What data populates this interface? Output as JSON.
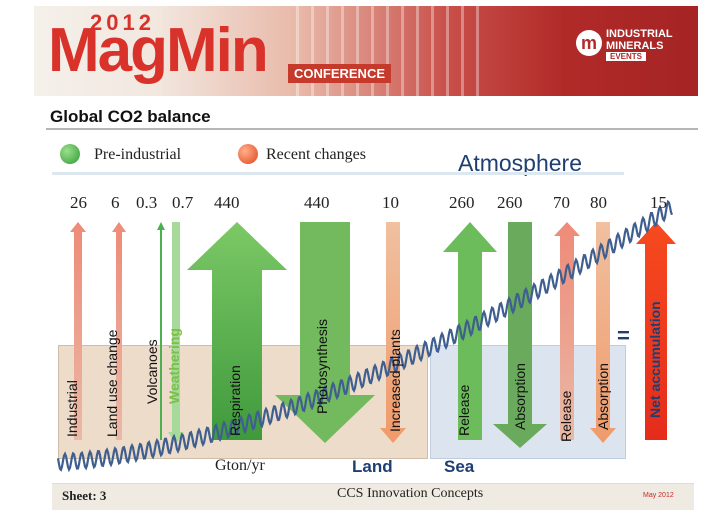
{
  "header": {
    "year": "2012",
    "brand": "MagMin",
    "conference": "CONFERENCE",
    "ime_mark": "m",
    "ime_line1": "INDUSTRIAL",
    "ime_line2": "MINERALS",
    "ime_line3": "EVENTS"
  },
  "slide": {
    "title": "Global CO2 balance",
    "legend_pre": "Pre-industrial",
    "legend_recent": "Recent changes",
    "atmosphere": "Atmosphere",
    "unit": "Gton/yr",
    "land": "Land",
    "sea": "Sea",
    "equals": "="
  },
  "flows": [
    {
      "value": "26",
      "label": "Industrial"
    },
    {
      "value": "6",
      "label": "Land use change"
    },
    {
      "value": "0.3",
      "label": "Volcanoes"
    },
    {
      "value": "0.7",
      "label": "Weathering"
    },
    {
      "value": "440",
      "label": "Respiration"
    },
    {
      "value": "440",
      "label": "Photosynthesis"
    },
    {
      "value": "10",
      "label": "Increased plants"
    },
    {
      "value": "260",
      "label": "Release"
    },
    {
      "value": "260",
      "label": "Absorption"
    },
    {
      "value": "70",
      "label": "Release"
    },
    {
      "value": "80",
      "label": "Absorption"
    },
    {
      "value": "15",
      "label": "Net accumulation"
    }
  ],
  "colors": {
    "pre_industrial": "#4caf50",
    "recent": "#f44336",
    "accent": "#1f3f73"
  },
  "footer": {
    "sheet": "Sheet: 3",
    "center": "CCS Innovation Concepts",
    "date": "May 2012"
  }
}
